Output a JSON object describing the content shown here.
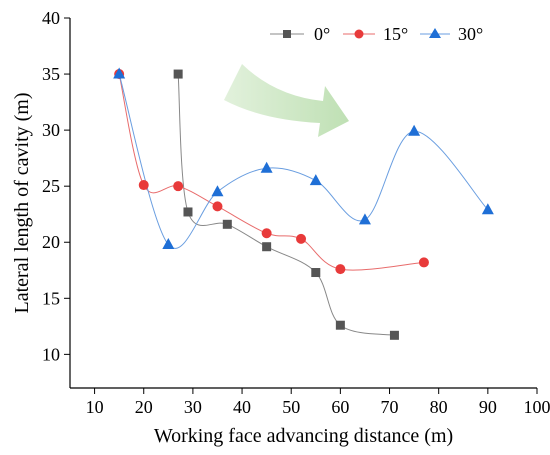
{
  "chart_data": {
    "type": "scatter",
    "title": "",
    "xlabel": "Working face advancing distance (m)",
    "ylabel": "Lateral length of cavity (m)",
    "xlim": [
      5,
      100
    ],
    "ylim": [
      7,
      40
    ],
    "xticks": [
      10,
      20,
      30,
      40,
      50,
      60,
      70,
      80,
      90,
      100
    ],
    "yticks": [
      10,
      15,
      20,
      25,
      30,
      35,
      40
    ],
    "legend_position": "top-right",
    "grid": false,
    "annotation": "green-arrow-pointing-right",
    "series": [
      {
        "name": "0°",
        "marker": "square",
        "color": "#555555",
        "line_color": "#888888",
        "points": [
          [
            27,
            35.0
          ],
          [
            29,
            22.7
          ],
          [
            37,
            21.6
          ],
          [
            45,
            19.6
          ],
          [
            55,
            17.3
          ],
          [
            60,
            12.6
          ],
          [
            71,
            11.7
          ]
        ]
      },
      {
        "name": "15°",
        "marker": "circle",
        "color": "#e83a3a",
        "line_color": "#e86b6b",
        "points": [
          [
            15,
            35.0
          ],
          [
            20,
            25.1
          ],
          [
            27,
            25.0
          ],
          [
            35,
            23.2
          ],
          [
            45,
            20.8
          ],
          [
            52,
            20.3
          ],
          [
            60,
            17.6
          ],
          [
            77,
            18.2
          ]
        ]
      },
      {
        "name": "30°",
        "marker": "triangle",
        "color": "#1f6fd6",
        "line_color": "#6a9ee0",
        "points": [
          [
            15,
            35.0
          ],
          [
            25,
            19.8
          ],
          [
            35,
            24.5
          ],
          [
            45,
            26.6
          ],
          [
            55,
            25.5
          ],
          [
            65,
            22.0
          ],
          [
            75,
            29.9
          ],
          [
            90,
            22.9
          ]
        ]
      }
    ]
  },
  "colors": {
    "axis": "#000000",
    "arrow_fill": "#cfe8c7"
  }
}
